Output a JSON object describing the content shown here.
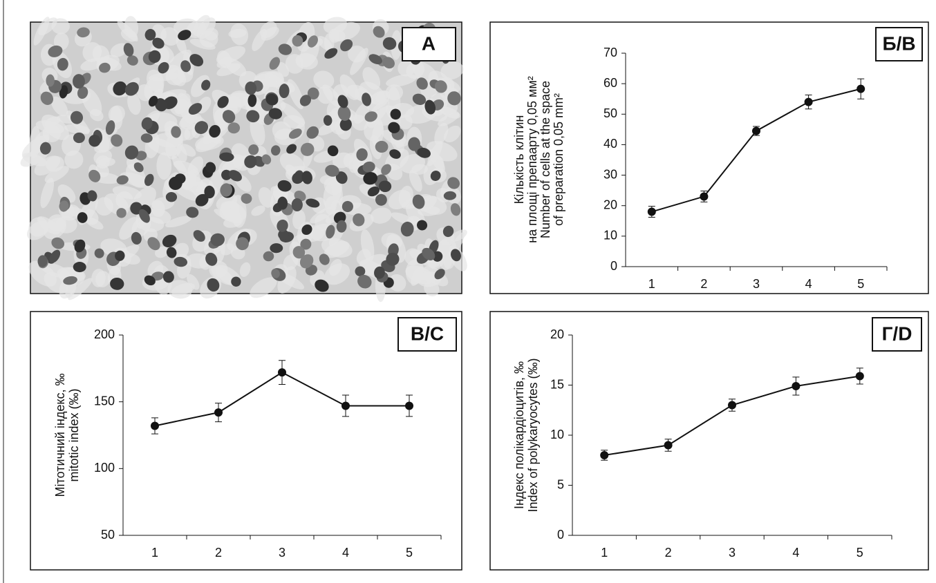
{
  "image_panel": {
    "label": "А"
  },
  "chart_data": [
    {
      "type": "line",
      "panel_label": "Б/В",
      "ylabel": [
        "Кількість клітин",
        "на площі препаарту 0,05 мм²",
        "Number of cells at the space",
        "of preparation 0,05 mm²"
      ],
      "categories": [
        "1",
        "2",
        "3",
        "4",
        "5"
      ],
      "values": [
        18,
        23,
        44.5,
        54,
        58.3
      ],
      "errors": [
        1.8,
        1.8,
        1.5,
        2.3,
        3.3
      ],
      "color": "#111111",
      "ylim": [
        0,
        70
      ],
      "yticks": [
        0,
        10,
        20,
        30,
        40,
        50,
        60,
        70
      ]
    },
    {
      "type": "line",
      "panel_label": "В/С",
      "ylabel": [
        "Мітотичний індекс, ‰",
        "mitotic index (‰)"
      ],
      "categories": [
        "1",
        "2",
        "3",
        "4",
        "5"
      ],
      "values": [
        132,
        142,
        172,
        147,
        147
      ],
      "errors": [
        6,
        7,
        9,
        8,
        8
      ],
      "color": "#111111",
      "ylim": [
        50,
        200
      ],
      "yticks": [
        50,
        100,
        150,
        200
      ]
    },
    {
      "type": "line",
      "panel_label": "Г/D",
      "ylabel": [
        "Індекс полікардіоцитів, ‰",
        "Index of polykaryocytes (‰)"
      ],
      "categories": [
        "1",
        "2",
        "3",
        "4",
        "5"
      ],
      "values": [
        8,
        9,
        13,
        14.9,
        15.9
      ],
      "errors": [
        0.5,
        0.6,
        0.6,
        0.9,
        0.8
      ],
      "color": "#111111",
      "ylim": [
        0,
        20
      ],
      "yticks": [
        0,
        5,
        10,
        15,
        20
      ]
    }
  ]
}
